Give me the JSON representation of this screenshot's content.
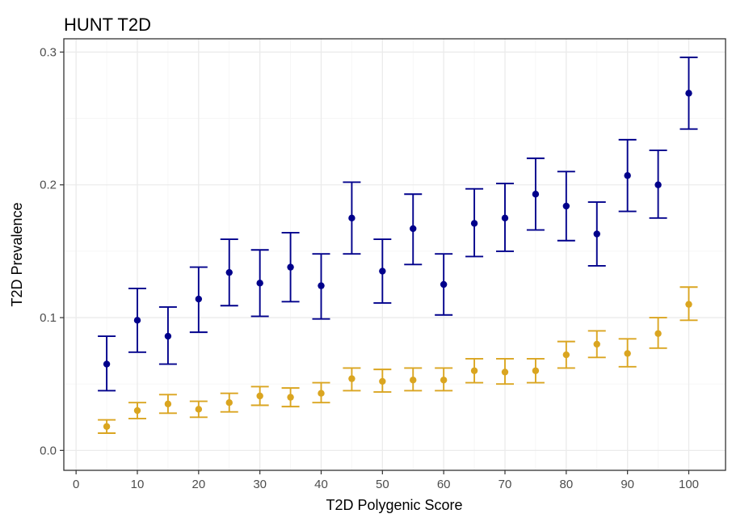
{
  "chart_data": {
    "type": "scatter",
    "title": "HUNT T2D",
    "xlabel": "T2D Polygenic Score",
    "ylabel": "T2D Prevalence",
    "xlim": [
      -2,
      106
    ],
    "ylim": [
      -0.015,
      0.31
    ],
    "x_ticks": [
      0,
      10,
      20,
      30,
      40,
      50,
      60,
      70,
      80,
      90,
      100
    ],
    "x_tick_labels": [
      "0",
      "10",
      "20",
      "30",
      "40",
      "50",
      "60",
      "70",
      "80",
      "90",
      "100"
    ],
    "y_ticks": [
      0.0,
      0.1,
      0.2,
      0.3
    ],
    "y_tick_labels": [
      "0.0",
      "0.1",
      "0.2",
      "0.3"
    ],
    "grid": true,
    "series": [
      {
        "color": "#00008b",
        "x": [
          5,
          10,
          15,
          20,
          25,
          30,
          35,
          40,
          45,
          50,
          55,
          60,
          65,
          70,
          75,
          80,
          85,
          90,
          95,
          100
        ],
        "y": [
          0.065,
          0.098,
          0.086,
          0.114,
          0.134,
          0.126,
          0.138,
          0.124,
          0.175,
          0.135,
          0.167,
          0.125,
          0.171,
          0.175,
          0.193,
          0.184,
          0.163,
          0.207,
          0.2,
          0.269
        ],
        "lower": [
          0.045,
          0.074,
          0.065,
          0.089,
          0.109,
          0.101,
          0.112,
          0.099,
          0.148,
          0.111,
          0.14,
          0.102,
          0.146,
          0.15,
          0.166,
          0.158,
          0.139,
          0.18,
          0.175,
          0.242
        ],
        "upper": [
          0.086,
          0.122,
          0.108,
          0.138,
          0.159,
          0.151,
          0.164,
          0.148,
          0.202,
          0.159,
          0.193,
          0.148,
          0.197,
          0.201,
          0.22,
          0.21,
          0.187,
          0.234,
          0.226,
          0.296
        ]
      },
      {
        "color": "#daa520",
        "x": [
          5,
          10,
          15,
          20,
          25,
          30,
          35,
          40,
          45,
          50,
          55,
          60,
          65,
          70,
          75,
          80,
          85,
          90,
          95,
          100
        ],
        "y": [
          0.018,
          0.03,
          0.035,
          0.031,
          0.036,
          0.041,
          0.04,
          0.043,
          0.054,
          0.052,
          0.053,
          0.053,
          0.06,
          0.059,
          0.06,
          0.072,
          0.08,
          0.073,
          0.088,
          0.11
        ],
        "lower": [
          0.013,
          0.024,
          0.028,
          0.025,
          0.029,
          0.034,
          0.033,
          0.036,
          0.045,
          0.044,
          0.045,
          0.045,
          0.051,
          0.05,
          0.051,
          0.062,
          0.07,
          0.063,
          0.077,
          0.098
        ],
        "upper": [
          0.023,
          0.036,
          0.042,
          0.037,
          0.043,
          0.048,
          0.047,
          0.051,
          0.062,
          0.061,
          0.062,
          0.062,
          0.069,
          0.069,
          0.069,
          0.082,
          0.09,
          0.084,
          0.1,
          0.123
        ]
      }
    ]
  }
}
